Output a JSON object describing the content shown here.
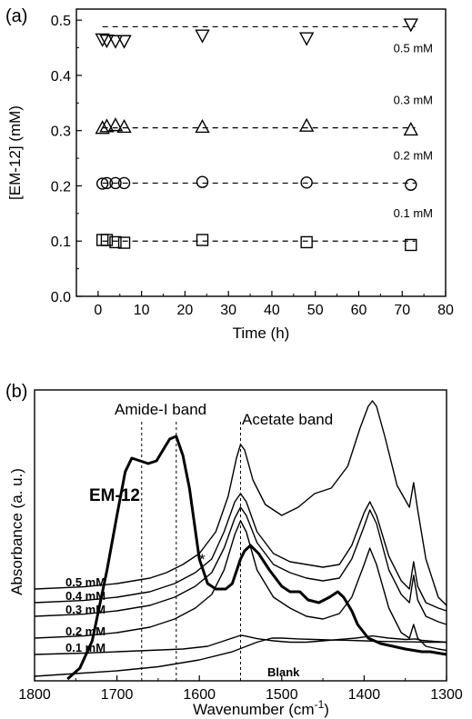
{
  "chart_data": [
    {
      "panel_label": "(a)",
      "type": "scatter",
      "xlabel": "Time (h)",
      "ylabel": "[EM-12] (mM)",
      "xlim": [
        -5,
        80
      ],
      "ylim": [
        0.0,
        0.52
      ],
      "xticks": [
        "0",
        "10",
        "20",
        "30",
        "40",
        "50",
        "60",
        "70",
        "80"
      ],
      "yticks": [
        "0.0",
        "0.1",
        "0.2",
        "0.3",
        "0.4",
        "0.5"
      ],
      "grid": false,
      "series": [
        {
          "name": "0.1 mM",
          "marker": "square",
          "fit": 0.1,
          "x": [
            1,
            2,
            4,
            6,
            24,
            48,
            72
          ],
          "y": [
            0.102,
            0.102,
            0.098,
            0.097,
            0.102,
            0.098,
            0.093
          ]
        },
        {
          "name": "0.2 mM",
          "marker": "circle",
          "fit": 0.205,
          "x": [
            1,
            2,
            4,
            6,
            24,
            48,
            72
          ],
          "y": [
            0.204,
            0.205,
            0.205,
            0.205,
            0.207,
            0.206,
            0.202
          ]
        },
        {
          "name": "0.3 mM",
          "marker": "triangle-up",
          "fit": 0.305,
          "x": [
            1,
            2,
            4,
            6,
            24,
            48,
            72
          ],
          "y": [
            0.305,
            0.308,
            0.31,
            0.307,
            0.307,
            0.309,
            0.302
          ]
        },
        {
          "name": "0.5 mM",
          "marker": "triangle-down",
          "fit": 0.488,
          "x": [
            1,
            2,
            4,
            6,
            24,
            48,
            72
          ],
          "y": [
            0.465,
            0.463,
            0.462,
            0.462,
            0.472,
            0.467,
            0.492
          ]
        }
      ]
    },
    {
      "panel_label": "(b)",
      "type": "line",
      "xlabel": "Wavenumber (cm",
      "xlabel_sup": "-1",
      "xlabel_end": ")",
      "ylabel": "Absorbance (a. u.)",
      "xlim": [
        1800,
        1300
      ],
      "xticks": [
        "1800",
        "1700",
        "1600",
        "1500",
        "1400",
        "1300"
      ],
      "y_ticks_shown": false,
      "reference_lines_cm-1": [
        1670,
        1628,
        1550
      ],
      "annotations": {
        "amide": "Amide-I band",
        "acetate": "Acetate band",
        "em12": "EM-12",
        "blank": "Blank",
        "asterisk": "*"
      },
      "series": [
        {
          "name": "EM-12",
          "emphasis": "thick",
          "x": [
            1760,
            1745,
            1730,
            1712,
            1700,
            1690,
            1682,
            1672,
            1662,
            1652,
            1644,
            1636,
            1628,
            1620,
            1612,
            1600,
            1590,
            1580,
            1568,
            1560,
            1550,
            1545,
            1538,
            1528,
            1515,
            1500,
            1490,
            1478,
            1468,
            1455,
            1442,
            1432,
            1425,
            1415,
            1408,
            1395,
            1380,
            1365,
            1350,
            1340,
            1330,
            1320,
            1310,
            1300
          ],
          "y": [
            0.0,
            0.04,
            0.14,
            0.4,
            0.6,
            0.76,
            0.81,
            0.8,
            0.79,
            0.8,
            0.84,
            0.88,
            0.89,
            0.82,
            0.7,
            0.44,
            0.35,
            0.33,
            0.33,
            0.35,
            0.44,
            0.47,
            0.49,
            0.46,
            0.4,
            0.34,
            0.32,
            0.32,
            0.29,
            0.28,
            0.3,
            0.32,
            0.3,
            0.25,
            0.2,
            0.15,
            0.13,
            0.12,
            0.11,
            0.105,
            0.1,
            0.1,
            0.095,
            0.09
          ]
        },
        {
          "name": "0.5 mM",
          "x": [
            1800,
            1740,
            1700,
            1660,
            1640,
            1620,
            1600,
            1580,
            1565,
            1555,
            1550,
            1545,
            1535,
            1520,
            1500,
            1480,
            1460,
            1440,
            1420,
            1405,
            1395,
            1390,
            1385,
            1375,
            1360,
            1345,
            1340,
            1335,
            1325,
            1310,
            1300
          ],
          "y": [
            0.33,
            0.338,
            0.35,
            0.37,
            0.39,
            0.42,
            0.46,
            0.54,
            0.67,
            0.81,
            0.86,
            0.84,
            0.73,
            0.64,
            0.6,
            0.63,
            0.68,
            0.7,
            0.78,
            0.92,
            1.0,
            1.02,
            1.0,
            0.89,
            0.71,
            0.63,
            0.72,
            0.62,
            0.44,
            0.3,
            0.27
          ]
        },
        {
          "name": "0.4 mM",
          "x": [
            1800,
            1740,
            1700,
            1660,
            1630,
            1605,
            1585,
            1570,
            1557,
            1550,
            1543,
            1530,
            1510,
            1490,
            1470,
            1450,
            1430,
            1415,
            1400,
            1393,
            1385,
            1370,
            1355,
            1345,
            1340,
            1335,
            1325,
            1310,
            1300
          ],
          "y": [
            0.28,
            0.288,
            0.3,
            0.32,
            0.35,
            0.39,
            0.44,
            0.54,
            0.65,
            0.68,
            0.65,
            0.54,
            0.46,
            0.43,
            0.42,
            0.41,
            0.42,
            0.49,
            0.61,
            0.65,
            0.6,
            0.45,
            0.36,
            0.33,
            0.43,
            0.34,
            0.28,
            0.26,
            0.25
          ]
        },
        {
          "name": "0.3 mM",
          "x": [
            1800,
            1740,
            1700,
            1660,
            1630,
            1605,
            1585,
            1570,
            1557,
            1550,
            1543,
            1530,
            1510,
            1490,
            1470,
            1450,
            1430,
            1415,
            1400,
            1393,
            1385,
            1370,
            1355,
            1345,
            1340,
            1335,
            1325,
            1310,
            1300
          ],
          "y": [
            0.23,
            0.238,
            0.25,
            0.27,
            0.3,
            0.34,
            0.39,
            0.48,
            0.59,
            0.63,
            0.6,
            0.5,
            0.42,
            0.39,
            0.37,
            0.36,
            0.37,
            0.44,
            0.56,
            0.62,
            0.57,
            0.4,
            0.31,
            0.28,
            0.38,
            0.29,
            0.23,
            0.21,
            0.2
          ]
        },
        {
          "name": "0.2 mM",
          "x": [
            1800,
            1740,
            1700,
            1660,
            1630,
            1605,
            1585,
            1570,
            1557,
            1550,
            1543,
            1530,
            1510,
            1490,
            1470,
            1450,
            1430,
            1415,
            1400,
            1393,
            1385,
            1370,
            1355,
            1345,
            1340,
            1335,
            1325,
            1310,
            1300
          ],
          "y": [
            0.15,
            0.158,
            0.17,
            0.19,
            0.22,
            0.26,
            0.31,
            0.4,
            0.53,
            0.58,
            0.54,
            0.4,
            0.3,
            0.26,
            0.23,
            0.22,
            0.24,
            0.3,
            0.42,
            0.48,
            0.42,
            0.26,
            0.17,
            0.15,
            0.2,
            0.15,
            0.12,
            0.11,
            0.105
          ]
        },
        {
          "name": "0.1 mM",
          "x": [
            1800,
            1740,
            1700,
            1660,
            1620,
            1590,
            1570,
            1555,
            1550,
            1545,
            1530,
            1510,
            1490,
            1470,
            1450,
            1430,
            1410,
            1395,
            1390,
            1385,
            1370,
            1350,
            1338,
            1330,
            1315,
            1300
          ],
          "y": [
            0.09,
            0.095,
            0.1,
            0.105,
            0.11,
            0.12,
            0.14,
            0.155,
            0.16,
            0.158,
            0.148,
            0.14,
            0.135,
            0.135,
            0.14,
            0.145,
            0.15,
            0.156,
            0.158,
            0.156,
            0.15,
            0.145,
            0.147,
            0.142,
            0.138,
            0.135
          ]
        },
        {
          "name": "Blank",
          "x": [
            1800,
            1750,
            1700,
            1650,
            1600,
            1560,
            1530,
            1512,
            1500,
            1480,
            1460,
            1440,
            1420,
            1400,
            1380,
            1360,
            1340,
            1320,
            1300
          ],
          "y": [
            0.01,
            0.02,
            0.03,
            0.045,
            0.07,
            0.1,
            0.135,
            0.15,
            0.15,
            0.147,
            0.145,
            0.143,
            0.142,
            0.14,
            0.138,
            0.137,
            0.136,
            0.135,
            0.135
          ]
        }
      ]
    }
  ]
}
